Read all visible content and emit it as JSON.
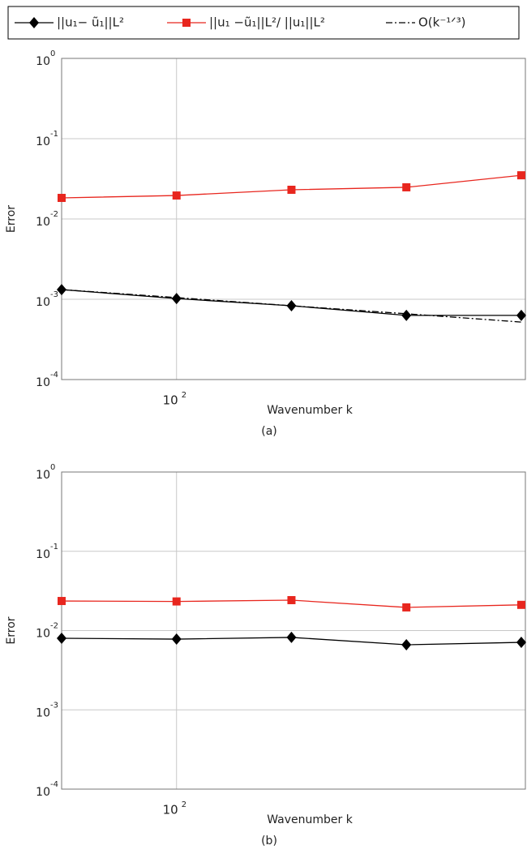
{
  "chart_data": [
    {
      "type": "line",
      "caption": "(a)",
      "xlabel": "Wavenumber  k",
      "ylabel": "Error",
      "xscale": "log",
      "yscale": "log",
      "grid": true,
      "legend": "top",
      "x": [
        50,
        100,
        200,
        400,
        800
      ],
      "xlim": [
        50,
        820
      ],
      "xticks": [
        {
          "value": 100,
          "label": "10",
          "exponent": "2"
        }
      ],
      "ylim": [
        0.0001,
        1
      ],
      "yticks": [
        {
          "value": 0.0001,
          "label": "10",
          "exponent": "-4"
        },
        {
          "value": 0.001,
          "label": "10",
          "exponent": "-3"
        },
        {
          "value": 0.01,
          "label": "10",
          "exponent": "-2"
        },
        {
          "value": 0.1,
          "label": "10",
          "exponent": "-1"
        },
        {
          "value": 1,
          "label": "10",
          "exponent": "0"
        }
      ],
      "series": [
        {
          "name": "||u₁− ũ₁||L²",
          "color": "#000000",
          "marker": "diamond",
          "linestyle": "solid",
          "values": [
            0.00132,
            0.00102,
            0.00083,
            0.00063,
            0.00063
          ]
        },
        {
          "name": "||u₁ −ũ₁||L²/ ||u₁||L²",
          "color": "#e8261e",
          "marker": "square",
          "linestyle": "solid",
          "values": [
            0.0183,
            0.0196,
            0.0231,
            0.0248,
            0.035
          ]
        },
        {
          "name": "O(k⁻¹ᐟ³)",
          "color": "#000000",
          "marker": "none",
          "linestyle": "dashdot",
          "values": [
            0.00132,
            0.00105,
            0.00083,
            0.00066,
            0.00052
          ]
        }
      ]
    },
    {
      "type": "line",
      "caption": "(b)",
      "xlabel": "Wavenumber  k",
      "ylabel": "Error",
      "xscale": "log",
      "yscale": "log",
      "grid": true,
      "x": [
        50,
        100,
        200,
        400,
        800
      ],
      "xlim": [
        50,
        820
      ],
      "xticks": [
        {
          "value": 100,
          "label": "10",
          "exponent": "2"
        }
      ],
      "ylim": [
        0.0001,
        1
      ],
      "yticks": [
        {
          "value": 0.0001,
          "label": "10",
          "exponent": "-4"
        },
        {
          "value": 0.001,
          "label": "10",
          "exponent": "-3"
        },
        {
          "value": 0.01,
          "label": "10",
          "exponent": "-2"
        },
        {
          "value": 0.1,
          "label": "10",
          "exponent": "-1"
        },
        {
          "value": 1,
          "label": "10",
          "exponent": "0"
        }
      ],
      "series": [
        {
          "color": "#000000",
          "marker": "diamond",
          "linestyle": "solid",
          "values": [
            0.008,
            0.0078,
            0.0082,
            0.00662,
            0.0071
          ]
        },
        {
          "color": "#e8261e",
          "marker": "square",
          "linestyle": "solid",
          "values": [
            0.0236,
            0.0233,
            0.0242,
            0.0196,
            0.0211
          ]
        }
      ]
    }
  ]
}
